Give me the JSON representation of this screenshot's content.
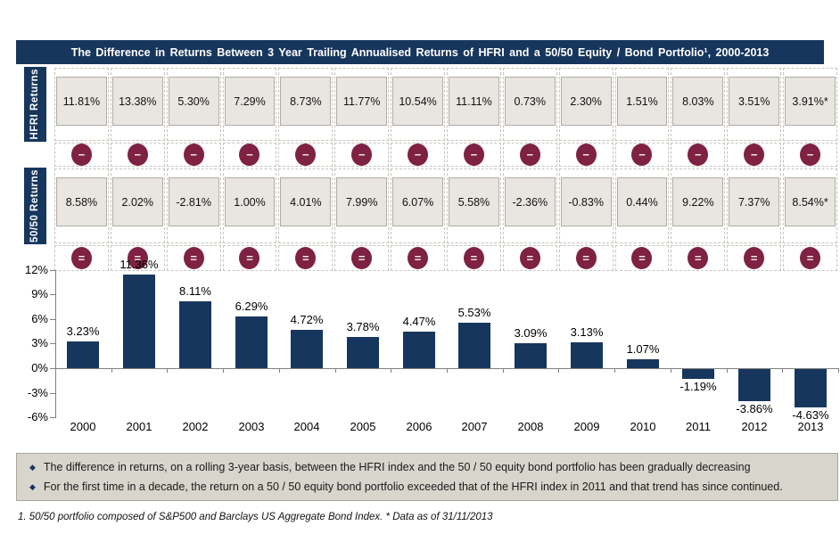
{
  "page": {
    "title": "The Difference in Returns Between 3 Year Trailing Annualised Returns of HFRI and a 50/50 Equity / Bond Portfolio¹, 2000-2013",
    "footnote": "1. 50/50 portfolio composed of S&P500 and Barclays US Aggregate Bond Index. * Data as of 31/11/2013"
  },
  "comparison_table": {
    "row_labels": [
      "HFRI Returns",
      "50/50 Returns"
    ],
    "hfri_values": [
      "11.81%",
      "13.38%",
      "5.30%",
      "7.29%",
      "8.73%",
      "11.77%",
      "10.54%",
      "11.11%",
      "0.73%",
      "2.30%",
      "1.51%",
      "8.03%",
      "3.51%",
      "3.91%*"
    ],
    "fifty_fifty_values": [
      "8.58%",
      "2.02%",
      "-2.81%",
      "1.00%",
      "4.01%",
      "7.99%",
      "6.07%",
      "5.58%",
      "-2.36%",
      "-0.83%",
      "0.44%",
      "9.22%",
      "7.37%",
      "8.54%*"
    ],
    "minus_glyph": "−",
    "equals_glyph": "="
  },
  "chart_data": {
    "type": "bar",
    "title": "",
    "xlabel": "",
    "ylabel": "",
    "categories": [
      "2000",
      "2001",
      "2002",
      "2003",
      "2004",
      "2005",
      "2006",
      "2007",
      "2008",
      "2009",
      "2010",
      "2011",
      "2012",
      "2013"
    ],
    "values": [
      3.23,
      11.36,
      8.11,
      6.29,
      4.72,
      3.78,
      4.47,
      5.53,
      3.09,
      3.13,
      1.07,
      -1.19,
      -3.86,
      -4.63
    ],
    "value_labels": [
      "3.23%",
      "11.36%",
      "8.11%",
      "6.29%",
      "4.72%",
      "3.78%",
      "4.47%",
      "5.53%",
      "3.09%",
      "3.13%",
      "1.07%",
      "-1.19%",
      "-3.86%",
      "-4.63%"
    ],
    "ylim": [
      -6,
      12
    ],
    "ytick_values": [
      12,
      9,
      6,
      3,
      0,
      -3,
      -6
    ],
    "ytick_labels": [
      "12%",
      "9%",
      "6%",
      "3%",
      "0%",
      "-3%",
      "-6%"
    ],
    "grid": false,
    "legend": null,
    "bar_color": "#17365D"
  },
  "insights": {
    "bullet_glyph": "◆",
    "bullets": [
      "The difference in returns, on a rolling 3-year basis, between the HFRI index and the 50 / 50 equity bond portfolio has been gradually decreasing",
      "For the first time in a decade, the return on a 50 / 50 equity bond portfolio exceeded that of the HFRI index in 2011 and that trend has since continued."
    ]
  },
  "colors": {
    "navy": "#17365D",
    "maroon": "#7E2143",
    "box_bg": "#E9E6E1",
    "panel_bg": "#D8D5CD"
  }
}
